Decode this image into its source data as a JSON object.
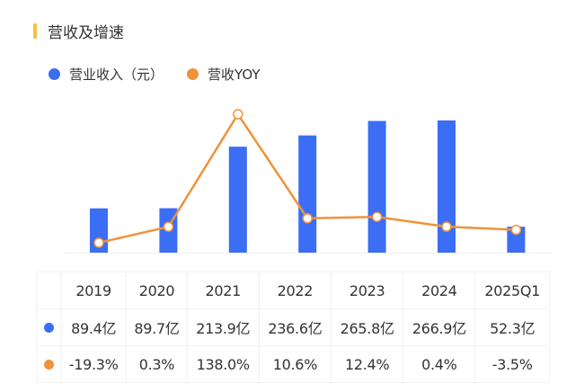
{
  "chart_data": {
    "type": "bar+line",
    "title": "营收及增速",
    "categories": [
      "2019",
      "2020",
      "2021",
      "2022",
      "2023",
      "2024",
      "2025Q1"
    ],
    "series": [
      {
        "name": "营业收入（元）",
        "type": "bar",
        "color": "#3b6ef5",
        "values": [
          89.4,
          89.7,
          213.9,
          236.6,
          265.8,
          266.9,
          52.3
        ],
        "labels": [
          "89.4亿",
          "89.7亿",
          "213.9亿",
          "236.6亿",
          "265.8亿",
          "266.9亿",
          "52.3亿"
        ]
      },
      {
        "name": "营收YOY",
        "type": "line",
        "color": "#f0923a",
        "values": [
          -19.3,
          0.3,
          138.0,
          10.6,
          12.4,
          0.4,
          -3.5
        ],
        "labels": [
          "-19.3%",
          "0.3%",
          "138.0%",
          "10.6%",
          "12.4%",
          "0.4%",
          "-3.5%"
        ]
      }
    ],
    "grid": false,
    "legend": "top-left"
  }
}
